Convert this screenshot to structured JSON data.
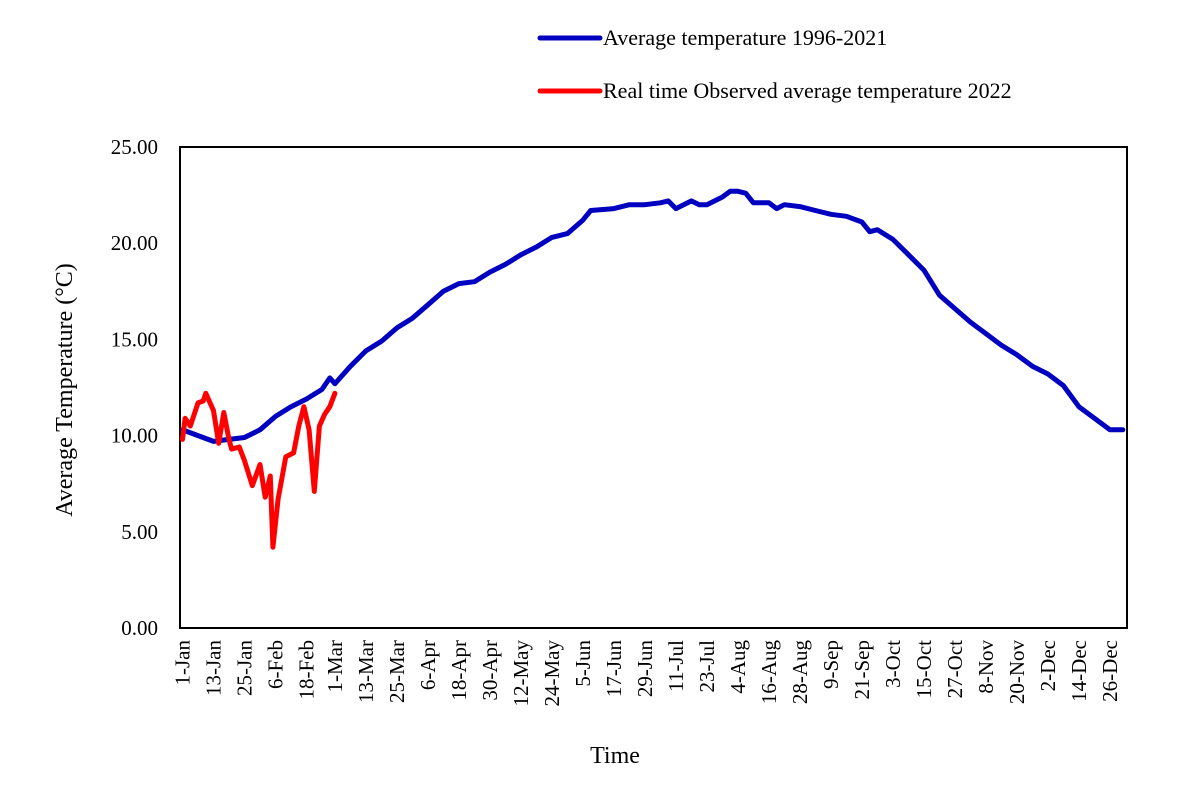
{
  "chart_data": {
    "type": "line",
    "xlabel": "Time",
    "ylabel": "Average Temperature (°C)",
    "ylim": [
      0,
      25
    ],
    "yticks": [
      "0.00",
      "5.00",
      "10.00",
      "15.00",
      "20.00",
      "25.00"
    ],
    "xticks": [
      "1-Jan",
      "13-Jan",
      "25-Jan",
      "6-Feb",
      "18-Feb",
      "1-Mar",
      "13-Mar",
      "25-Mar",
      "6-Apr",
      "18-Apr",
      "30-Apr",
      "12-May",
      "24-May",
      "5-Jun",
      "17-Jun",
      "29-Jun",
      "11-Jul",
      "23-Jul",
      "4-Aug",
      "16-Aug",
      "28-Aug",
      "9-Sep",
      "21-Sep",
      "3-Oct",
      "15-Oct",
      "27-Oct",
      "8-Nov",
      "20-Nov",
      "2-Dec",
      "14-Dec",
      "26-Dec"
    ],
    "xlim": [
      "1-Jan",
      "31-Dec"
    ],
    "grid": false,
    "legend_position": "top-right",
    "series": [
      {
        "name": "Average temperature 1996-2021",
        "color": "#0000c0",
        "points": [
          [
            "1-Jan",
            10.3
          ],
          [
            "7-Jan",
            10.0
          ],
          [
            "13-Jan",
            9.7
          ],
          [
            "19-Jan",
            9.8
          ],
          [
            "25-Jan",
            9.9
          ],
          [
            "31-Jan",
            10.3
          ],
          [
            "6-Feb",
            11.0
          ],
          [
            "12-Feb",
            11.5
          ],
          [
            "18-Feb",
            11.9
          ],
          [
            "24-Feb",
            12.4
          ],
          [
            "27-Feb",
            13.0
          ],
          [
            "1-Mar",
            12.7
          ],
          [
            "7-Mar",
            13.6
          ],
          [
            "13-Mar",
            14.4
          ],
          [
            "19-Mar",
            14.9
          ],
          [
            "25-Mar",
            15.6
          ],
          [
            "31-Mar",
            16.1
          ],
          [
            "6-Apr",
            16.8
          ],
          [
            "12-Apr",
            17.5
          ],
          [
            "18-Apr",
            17.9
          ],
          [
            "24-Apr",
            18.0
          ],
          [
            "30-Apr",
            18.5
          ],
          [
            "6-May",
            18.9
          ],
          [
            "12-May",
            19.4
          ],
          [
            "18-May",
            19.8
          ],
          [
            "24-May",
            20.3
          ],
          [
            "30-May",
            20.5
          ],
          [
            "5-Jun",
            21.2
          ],
          [
            "8-Jun",
            21.7
          ],
          [
            "17-Jun",
            21.8
          ],
          [
            "23-Jun",
            22.0
          ],
          [
            "29-Jun",
            22.0
          ],
          [
            "5-Jul",
            22.1
          ],
          [
            "8-Jul",
            22.2
          ],
          [
            "11-Jul",
            21.8
          ],
          [
            "17-Jul",
            22.2
          ],
          [
            "20-Jul",
            22.0
          ],
          [
            "23-Jul",
            22.0
          ],
          [
            "29-Jul",
            22.4
          ],
          [
            "1-Aug",
            22.7
          ],
          [
            "4-Aug",
            22.7
          ],
          [
            "7-Aug",
            22.6
          ],
          [
            "10-Aug",
            22.1
          ],
          [
            "16-Aug",
            22.1
          ],
          [
            "19-Aug",
            21.8
          ],
          [
            "22-Aug",
            22.0
          ],
          [
            "28-Aug",
            21.9
          ],
          [
            "3-Sep",
            21.7
          ],
          [
            "9-Sep",
            21.5
          ],
          [
            "15-Sep",
            21.4
          ],
          [
            "21-Sep",
            21.1
          ],
          [
            "24-Sep",
            20.6
          ],
          [
            "27-Sep",
            20.7
          ],
          [
            "3-Oct",
            20.2
          ],
          [
            "9-Oct",
            19.4
          ],
          [
            "15-Oct",
            18.6
          ],
          [
            "21-Oct",
            17.3
          ],
          [
            "27-Oct",
            16.6
          ],
          [
            "2-Nov",
            15.9
          ],
          [
            "8-Nov",
            15.3
          ],
          [
            "14-Nov",
            14.7
          ],
          [
            "20-Nov",
            14.2
          ],
          [
            "26-Nov",
            13.6
          ],
          [
            "2-Dec",
            13.2
          ],
          [
            "8-Dec",
            12.6
          ],
          [
            "14-Dec",
            11.5
          ],
          [
            "20-Dec",
            10.9
          ],
          [
            "26-Dec",
            10.3
          ],
          [
            "31-Dec",
            10.3
          ]
        ]
      },
      {
        "name": "Real time Observed average temperature 2022",
        "color": "#ff0000",
        "points": [
          [
            "1-Jan",
            9.8
          ],
          [
            "2-Jan",
            10.9
          ],
          [
            "4-Jan",
            10.5
          ],
          [
            "7-Jan",
            11.7
          ],
          [
            "9-Jan",
            11.8
          ],
          [
            "10-Jan",
            12.2
          ],
          [
            "13-Jan",
            11.3
          ],
          [
            "15-Jan",
            9.6
          ],
          [
            "17-Jan",
            11.2
          ],
          [
            "19-Jan",
            9.8
          ],
          [
            "20-Jan",
            9.3
          ],
          [
            "23-Jan",
            9.4
          ],
          [
            "25-Jan",
            8.7
          ],
          [
            "28-Jan",
            7.4
          ],
          [
            "31-Jan",
            8.5
          ],
          [
            "2-Feb",
            6.8
          ],
          [
            "4-Feb",
            7.9
          ],
          [
            "5-Feb",
            4.2
          ],
          [
            "7-Feb",
            6.7
          ],
          [
            "10-Feb",
            8.9
          ],
          [
            "13-Feb",
            9.1
          ],
          [
            "15-Feb",
            10.5
          ],
          [
            "17-Feb",
            11.5
          ],
          [
            "19-Feb",
            10.3
          ],
          [
            "21-Feb",
            7.1
          ],
          [
            "23-Feb",
            10.5
          ],
          [
            "25-Feb",
            11.1
          ],
          [
            "27-Feb",
            11.5
          ],
          [
            "1-Mar",
            12.2
          ]
        ]
      }
    ]
  }
}
